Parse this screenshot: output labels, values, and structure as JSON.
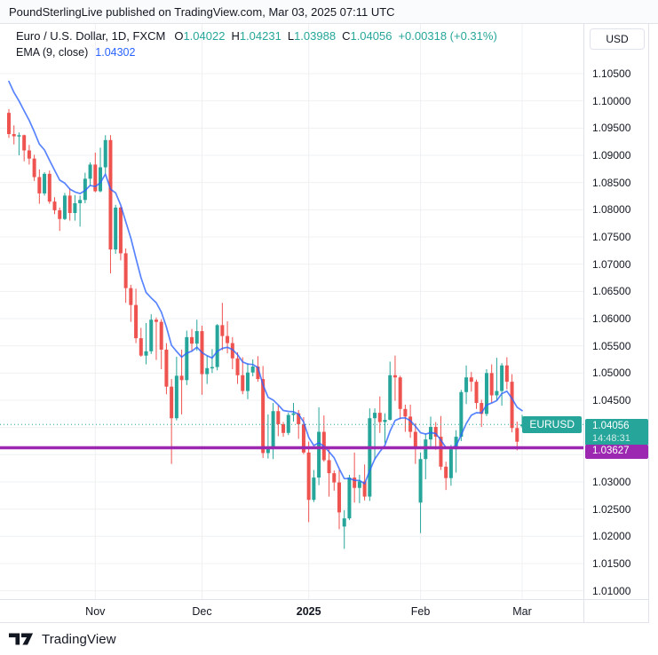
{
  "publish_bar": {
    "text": "PoundSterlingLive published on TradingView.com, Mar 03, 2025 07:11 UTC"
  },
  "legend": {
    "symbol": "Euro / U.S. Dollar, 1D, FXCM",
    "o_label": "O",
    "o": "1.04022",
    "h_label": "H",
    "h": "1.04231",
    "l_label": "L",
    "l": "1.03988",
    "c_label": "C",
    "c": "1.04056",
    "change": "+0.00318 (+0.31%)",
    "ema_label": "EMA (9, close)",
    "ema_value": "1.04302"
  },
  "price_axis": {
    "currency": "USD",
    "ticks": [
      "1.10500",
      "1.10000",
      "1.09500",
      "1.09000",
      "1.08500",
      "1.08000",
      "1.07500",
      "1.07000",
      "1.06500",
      "1.06000",
      "1.05500",
      "1.05000",
      "1.04500",
      "1.04000",
      "1.03500",
      "1.03000",
      "1.02500",
      "1.02000",
      "1.01500",
      "1.01000"
    ],
    "last_price_badge": {
      "price": "1.04056",
      "countdown": "14:48:31"
    },
    "level_badge": {
      "price": "1.03627"
    }
  },
  "price_line_label": "EURUSD",
  "time_axis": {
    "labels": [
      {
        "text": "Nov",
        "candle_index": 17
      },
      {
        "text": "Dec",
        "candle_index": 38
      },
      {
        "text": "2025",
        "candle_index": 59,
        "bold": true
      },
      {
        "text": "Feb",
        "candle_index": 81
      },
      {
        "text": "Mar",
        "candle_index": 101
      }
    ]
  },
  "footer": {
    "brand": "TradingView"
  },
  "colors": {
    "up": "#26A69A",
    "down": "#EF5350",
    "ema": "#2962FF",
    "level": "#9C27B0",
    "grid": "#eef0f3",
    "border": "#e0e3eb",
    "text": "#131722"
  },
  "chart_data": {
    "type": "candlestick",
    "symbol": "Euro / U.S. Dollar",
    "ticker": "EURUSD",
    "timeframe": "1D",
    "exchange": "FXCM",
    "quote_currency": "USD",
    "current_bar": {
      "open": 1.04022,
      "high": 1.04231,
      "low": 1.03988,
      "close": 1.04056,
      "change": "+0.00318 (+0.31%)"
    },
    "y_axis": {
      "min_labeled": 1.01,
      "max_labeled": 1.105,
      "tick_step": 0.005
    },
    "grid": true,
    "legend_position": "top-left",
    "levels": [
      {
        "name": "last-price-line",
        "price": 1.04056,
        "style": "dotted",
        "color": "#26A69A",
        "width": 1,
        "label": "EURUSD"
      },
      {
        "name": "support-level-line",
        "price": 1.03627,
        "style": "solid",
        "color": "#9C27B0",
        "width": 3.5
      }
    ],
    "overlays": [
      {
        "name": "EMA (9, close)",
        "type": "ema",
        "period": 9,
        "source": "close",
        "seed": 1.106,
        "last_value": 1.04302,
        "color": "#2962FF"
      }
    ],
    "columns": [
      "date",
      "open",
      "high",
      "low",
      "close"
    ],
    "candles": [
      [
        "Oct 9",
        1.0978,
        1.0985,
        1.0932,
        1.0939
      ],
      [
        "Oct 10",
        1.0939,
        1.0955,
        1.092,
        1.0935
      ],
      [
        "Oct 11",
        1.0935,
        1.0942,
        1.09,
        1.0937
      ],
      [
        "Oct 14",
        1.0937,
        1.0938,
        1.0889,
        1.0909
      ],
      [
        "Oct 15",
        1.0909,
        1.0919,
        1.0883,
        1.0894
      ],
      [
        "Oct 16",
        1.0894,
        1.0901,
        1.0853,
        1.086
      ],
      [
        "Oct 17",
        1.086,
        1.0874,
        1.0811,
        1.083
      ],
      [
        "Oct 18",
        1.083,
        1.0869,
        1.0826,
        1.0866
      ],
      [
        "Oct 21",
        1.0866,
        1.0872,
        1.0811,
        1.0815
      ],
      [
        "Oct 22",
        1.0815,
        1.0823,
        1.0792,
        1.0799
      ],
      [
        "Oct 23",
        1.0799,
        1.0804,
        1.0761,
        1.0783
      ],
      [
        "Oct 24",
        1.0783,
        1.0831,
        1.0781,
        1.0826
      ],
      [
        "Oct 25",
        1.0826,
        1.0839,
        1.078,
        1.0794
      ],
      [
        "Oct 28",
        1.0794,
        1.0827,
        1.078,
        1.0812
      ],
      [
        "Oct 29",
        1.0812,
        1.0826,
        1.0769,
        1.0818
      ],
      [
        "Oct 30",
        1.0818,
        1.0868,
        1.0812,
        1.0857
      ],
      [
        "Oct 31",
        1.0857,
        1.0887,
        1.0844,
        1.0883
      ],
      [
        "Nov 1",
        1.0883,
        1.0905,
        1.0832,
        1.0834
      ],
      [
        "Nov 4",
        1.0834,
        1.0914,
        1.0832,
        1.0878
      ],
      [
        "Nov 5",
        1.0878,
        1.0937,
        1.0866,
        1.0928
      ],
      [
        "Nov 6",
        1.0928,
        1.0937,
        1.0683,
        1.0727
      ],
      [
        "Nov 7",
        1.0727,
        1.0809,
        1.0719,
        1.0804
      ],
      [
        "Nov 8",
        1.0804,
        1.0806,
        1.0707,
        1.072
      ],
      [
        "Nov 11",
        1.072,
        1.0729,
        1.0629,
        1.0656
      ],
      [
        "Nov 12",
        1.0656,
        1.0662,
        1.0594,
        1.0625
      ],
      [
        "Nov 13",
        1.0625,
        1.0655,
        1.0555,
        1.0564
      ],
      [
        "Nov 14",
        1.0564,
        1.0583,
        1.053,
        1.0532
      ],
      [
        "Nov 15",
        1.0532,
        1.0592,
        1.0516,
        1.054
      ],
      [
        "Nov 18",
        1.054,
        1.0608,
        1.0535,
        1.0598
      ],
      [
        "Nov 19",
        1.0598,
        1.0602,
        1.0524,
        1.0594
      ],
      [
        "Nov 20",
        1.0594,
        1.0599,
        1.0507,
        1.0543
      ],
      [
        "Nov 21",
        1.0543,
        1.0555,
        1.0461,
        1.0475
      ],
      [
        "Nov 22",
        1.0475,
        1.0489,
        1.0333,
        1.0417
      ],
      [
        "Nov 25",
        1.0417,
        1.053,
        1.0413,
        1.0495
      ],
      [
        "Nov 26",
        1.0495,
        1.0543,
        1.0424,
        1.0487
      ],
      [
        "Nov 27",
        1.0487,
        1.0578,
        1.0478,
        1.0566
      ],
      [
        "Nov 28",
        1.0566,
        1.0581,
        1.0541,
        1.0554
      ],
      [
        "Nov 29",
        1.0554,
        1.0598,
        1.0541,
        1.0577
      ],
      [
        "Dec 2",
        1.0577,
        1.0587,
        1.046,
        1.0498
      ],
      [
        "Dec 3",
        1.0498,
        1.0532,
        1.048,
        1.0509
      ],
      [
        "Dec 4",
        1.0509,
        1.0544,
        1.05,
        1.0511
      ],
      [
        "Dec 5",
        1.0511,
        1.059,
        1.0505,
        1.0588
      ],
      [
        "Dec 6",
        1.0588,
        1.0629,
        1.0542,
        1.0568
      ],
      [
        "Dec 9",
        1.0568,
        1.0595,
        1.0536,
        1.0555
      ],
      [
        "Dec 10",
        1.0555,
        1.0566,
        1.0507,
        1.0527
      ],
      [
        "Dec 11",
        1.0527,
        1.0538,
        1.048,
        1.0496
      ],
      [
        "Dec 12",
        1.0496,
        1.0529,
        1.0461,
        1.0467
      ],
      [
        "Dec 13",
        1.0467,
        1.0518,
        1.0452,
        1.0501
      ],
      [
        "Dec 16",
        1.0501,
        1.0525,
        1.0494,
        1.0512
      ],
      [
        "Dec 17",
        1.0512,
        1.0531,
        1.0484,
        1.0489
      ],
      [
        "Dec 18",
        1.0489,
        1.0513,
        1.0344,
        1.0353
      ],
      [
        "Dec 19",
        1.0353,
        1.0424,
        1.0343,
        1.0362
      ],
      [
        "Dec 20",
        1.0362,
        1.0445,
        1.0342,
        1.043
      ],
      [
        "Dec 23",
        1.043,
        1.044,
        1.0384,
        1.0406
      ],
      [
        "Dec 24",
        1.0406,
        1.041,
        1.0383,
        1.039
      ],
      [
        "Dec 26",
        1.039,
        1.0427,
        1.0386,
        1.0423
      ],
      [
        "Dec 27",
        1.0423,
        1.0445,
        1.0411,
        1.0426
      ],
      [
        "Dec 30",
        1.0426,
        1.0432,
        1.0379,
        1.0406
      ],
      [
        "Dec 31",
        1.0406,
        1.0419,
        1.0351,
        1.0354
      ],
      [
        "Jan 2",
        1.0354,
        1.0374,
        1.0226,
        1.0267
      ],
      [
        "Jan 3",
        1.0267,
        1.0322,
        1.0263,
        1.0308
      ],
      [
        "Jan 6",
        1.0308,
        1.0437,
        1.0294,
        1.0392
      ],
      [
        "Jan 7",
        1.0392,
        1.0422,
        1.0337,
        1.034
      ],
      [
        "Jan 8",
        1.034,
        1.036,
        1.0273,
        1.0316
      ],
      [
        "Jan 9",
        1.0316,
        1.0321,
        1.0284,
        1.0299
      ],
      [
        "Jan 10",
        1.0299,
        1.0322,
        1.0213,
        1.0244
      ],
      [
        "Jan 13",
        1.0218,
        1.0248,
        1.0177,
        1.0233
      ],
      [
        "Jan 14",
        1.0233,
        1.0313,
        1.023,
        1.0308
      ],
      [
        "Jan 15",
        1.0308,
        1.0354,
        1.0262,
        1.0289
      ],
      [
        "Jan 16",
        1.0289,
        1.0313,
        1.0261,
        1.0301
      ],
      [
        "Jan 17",
        1.0301,
        1.0332,
        1.0266,
        1.0273
      ],
      [
        "Jan 20",
        1.0273,
        1.0435,
        1.0265,
        1.0417
      ],
      [
        "Jan 21",
        1.0417,
        1.0435,
        1.0341,
        1.0427
      ],
      [
        "Jan 22",
        1.0427,
        1.0457,
        1.039,
        1.041
      ],
      [
        "Jan 23",
        1.041,
        1.0426,
        1.0371,
        1.0414
      ],
      [
        "Jan 24",
        1.0414,
        1.0521,
        1.0413,
        1.0496
      ],
      [
        "Jan 27",
        1.0496,
        1.0532,
        1.0449,
        1.0492
      ],
      [
        "Jan 28",
        1.0492,
        1.0495,
        1.0415,
        1.0434
      ],
      [
        "Jan 29",
        1.0434,
        1.0442,
        1.0392,
        1.042
      ],
      [
        "Jan 30",
        1.042,
        1.0442,
        1.0381,
        1.0392
      ],
      [
        "Jan 31",
        1.0392,
        1.0408,
        1.0333,
        1.0362
      ],
      [
        "Feb 3",
        1.0262,
        1.0354,
        1.0206,
        1.0342
      ],
      [
        "Feb 4",
        1.0342,
        1.0389,
        1.0305,
        1.0378
      ],
      [
        "Feb 5",
        1.0378,
        1.042,
        1.0364,
        1.0401
      ],
      [
        "Feb 6",
        1.0401,
        1.041,
        1.0359,
        1.0383
      ],
      [
        "Feb 7",
        1.0383,
        1.0421,
        1.0322,
        1.0328
      ],
      [
        "Feb 10",
        1.0328,
        1.0337,
        1.0285,
        1.0307
      ],
      [
        "Feb 11",
        1.0307,
        1.0368,
        1.0293,
        1.036
      ],
      [
        "Feb 12",
        1.036,
        1.0395,
        1.0317,
        1.0383
      ],
      [
        "Feb 13",
        1.0383,
        1.0469,
        1.0375,
        1.0465
      ],
      [
        "Feb 14",
        1.0465,
        1.0514,
        1.0443,
        1.0492
      ],
      [
        "Feb 17",
        1.0492,
        1.0502,
        1.0466,
        1.0484
      ],
      [
        "Feb 18",
        1.0484,
        1.0488,
        1.0434,
        1.0445
      ],
      [
        "Feb 19",
        1.0445,
        1.0451,
        1.0401,
        1.0425
      ],
      [
        "Feb 20",
        1.0425,
        1.0507,
        1.0421,
        1.05
      ],
      [
        "Feb 21",
        1.05,
        1.0516,
        1.0445,
        1.0459
      ],
      [
        "Feb 24",
        1.0459,
        1.0528,
        1.045,
        1.0467
      ],
      [
        "Feb 25",
        1.0467,
        1.0518,
        1.044,
        1.0514
      ],
      [
        "Feb 26",
        1.0514,
        1.0529,
        1.047,
        1.0484
      ],
      [
        "Feb 27",
        1.0484,
        1.0498,
        1.0391,
        1.0399
      ],
      [
        "Feb 28",
        1.0399,
        1.0411,
        1.0358,
        1.03738
      ],
      [
        "Mar 3",
        1.04022,
        1.04231,
        1.03988,
        1.04056
      ]
    ]
  }
}
